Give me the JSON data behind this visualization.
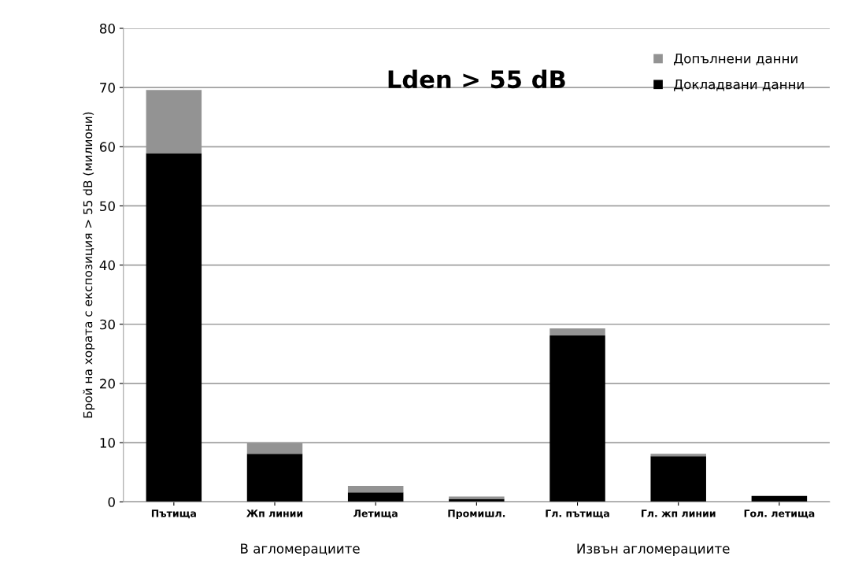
{
  "chart_data": {
    "type": "bar",
    "title": "Lden > 55 dB",
    "ylabel": "Брой на хората с експозиция > 55 dB (милиони)",
    "categories": [
      "Пътища",
      "Жп линии",
      "Летища",
      "Промишл.",
      "Гл. пътища",
      "Гл. жп линии",
      "Гол. летища"
    ],
    "stacked": true,
    "series": [
      {
        "name": "Докладвани данни",
        "color": "#000000",
        "values": [
          58.9,
          8.1,
          1.6,
          0.5,
          28.1,
          7.7,
          1.0
        ]
      },
      {
        "name": "Допълнени данни",
        "color": "#939393",
        "values": [
          10.7,
          1.8,
          1.1,
          0.4,
          1.2,
          0.4,
          0.0
        ]
      }
    ],
    "ylim": [
      0,
      80
    ],
    "yticks": [
      0,
      10,
      20,
      30,
      40,
      50,
      60,
      70,
      80
    ],
    "grid": "y",
    "legend": "top right",
    "annotations": [
      "В агломерациите",
      "Извън агломерациите"
    ]
  }
}
